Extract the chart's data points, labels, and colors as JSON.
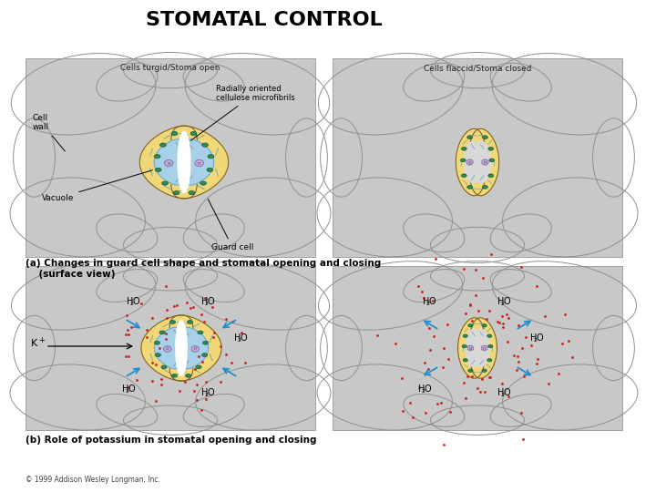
{
  "title": "STOMATAL CONTROL",
  "title_fontsize": 16,
  "bg_color": "#ffffff",
  "panel_bg": "#c8c8c8",
  "cell_wall_color": "#f0d878",
  "vacuole_color": "#a8d0e8",
  "chloroplast_color": "#2e8b57",
  "nucleus_color": "#c0a8d8",
  "label_turgid": "Cells turgid/Stoma open",
  "label_flaccid": "Cells flaccid/Stoma closed",
  "caption_a": "(a) Changes in guard cell shape and stomatal opening and closing\n    (surface view)",
  "caption_b": "(b) Role of potassium in stomatal opening and closing",
  "copyright": "© 1999 Addison Wesley Longman, Inc."
}
